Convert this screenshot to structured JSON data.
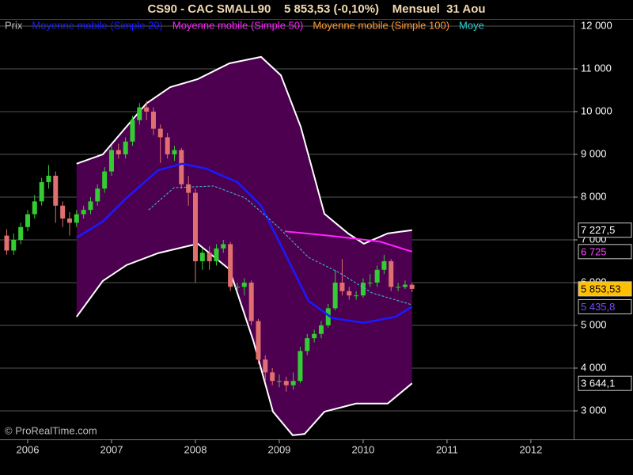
{
  "chart_data": {
    "type": "candlestick",
    "title": "CS90 - CAC SMALL90    5 853,53 (-0,10%)    Mensuel  31 Aou",
    "watermark": "© ProRealTime.com",
    "xlim": [
      2005.67,
      2012.51
    ],
    "xticks": [
      2006,
      2007,
      2008,
      2009,
      2010,
      2011,
      2012
    ],
    "ylim": [
      2333,
      12148
    ],
    "yticks": [
      {
        "value": 3000,
        "label": "3 000"
      },
      {
        "value": 4000,
        "label": "4 000"
      },
      {
        "value": 5000,
        "label": "5 000"
      },
      {
        "value": 6000,
        "label": "6 000"
      },
      {
        "value": 7000,
        "label": "7 000"
      },
      {
        "value": 8000,
        "label": "8 000"
      },
      {
        "value": 9000,
        "label": "9 000"
      },
      {
        "value": 10000,
        "label": "10 000"
      },
      {
        "value": 11000,
        "label": "11 000"
      },
      {
        "value": 12000,
        "label": "12 000"
      }
    ],
    "grid": true,
    "candles": {
      "name": "Prix",
      "color": "#bbbbbb",
      "up_color": "#33cc33",
      "down_color": "#e07070",
      "end_label": "5 853,53",
      "end_label_color": "#000000",
      "end_label_bg": "#ffc000",
      "x": [
        2005.75,
        2005.833,
        2005.917,
        2006.0,
        2006.083,
        2006.167,
        2006.25,
        2006.333,
        2006.417,
        2006.5,
        2006.583,
        2006.667,
        2006.75,
        2006.833,
        2006.917,
        2007.0,
        2007.083,
        2007.167,
        2007.25,
        2007.333,
        2007.417,
        2007.5,
        2007.583,
        2007.667,
        2007.75,
        2007.833,
        2007.917,
        2008.0,
        2008.083,
        2008.167,
        2008.25,
        2008.333,
        2008.417,
        2008.5,
        2008.583,
        2008.667,
        2008.75,
        2008.833,
        2008.917,
        2009.0,
        2009.083,
        2009.167,
        2009.25,
        2009.333,
        2009.417,
        2009.5,
        2009.583,
        2009.667,
        2009.75,
        2009.833,
        2009.917,
        2010.0,
        2010.083,
        2010.167,
        2010.25,
        2010.333,
        2010.417,
        2010.5,
        2010.583
      ],
      "open": [
        7100,
        6750,
        7000,
        7300,
        7600,
        7900,
        8350,
        8500,
        7800,
        7500,
        7400,
        7600,
        7700,
        7900,
        8200,
        8600,
        9100,
        9000,
        9300,
        9800,
        10100,
        10000,
        9600,
        9400,
        9000,
        9100,
        8300,
        8100,
        6500,
        6700,
        6500,
        6800,
        6900,
        5900,
        5900,
        6000,
        5100,
        4200,
        3900,
        3700,
        3700,
        3600,
        3700,
        4400,
        4700,
        4800,
        5000,
        5400,
        6000,
        5800,
        5700,
        5700,
        6000,
        6000,
        6300,
        6500,
        5900,
        5900,
        5950
      ],
      "high": [
        7250,
        7150,
        7400,
        7700,
        8050,
        8450,
        8750,
        8600,
        7900,
        7650,
        7700,
        7800,
        8000,
        8300,
        8700,
        9200,
        9250,
        9400,
        9900,
        10200,
        10250,
        10100,
        9700,
        9500,
        9200,
        9150,
        8500,
        8200,
        6800,
        6850,
        6900,
        7000,
        6950,
        6000,
        6100,
        6050,
        5150,
        4300,
        4000,
        3850,
        3800,
        3900,
        4500,
        4800,
        4900,
        5100,
        5500,
        6300,
        6550,
        5900,
        5800,
        6100,
        6200,
        6400,
        6650,
        6550,
        6000,
        6050,
        6000
      ],
      "low": [
        6650,
        6650,
        6900,
        7200,
        7500,
        7800,
        8200,
        7400,
        7300,
        7100,
        7300,
        7500,
        7600,
        7800,
        8100,
        8500,
        8900,
        8900,
        9200,
        9700,
        9800,
        9450,
        8800,
        8900,
        8850,
        8200,
        7800,
        6000,
        6300,
        6300,
        6400,
        6700,
        5800,
        5800,
        5700,
        5000,
        4100,
        3700,
        3600,
        3550,
        3450,
        3500,
        3650,
        4300,
        4600,
        4700,
        4950,
        5350,
        5700,
        5600,
        5600,
        5650,
        5900,
        5900,
        6200,
        5800,
        5800,
        5850,
        5780
      ],
      "close": [
        6750,
        7000,
        7300,
        7600,
        7900,
        8350,
        8500,
        7800,
        7500,
        7400,
        7600,
        7700,
        7900,
        8200,
        8600,
        9100,
        9000,
        9300,
        9800,
        10100,
        10000,
        9600,
        9400,
        9000,
        9100,
        8300,
        8100,
        6500,
        6700,
        6500,
        6800,
        6900,
        5900,
        5900,
        6000,
        5100,
        4200,
        3900,
        3700,
        3700,
        3600,
        3700,
        4400,
        4700,
        4800,
        5000,
        5400,
        6000,
        5800,
        5700,
        5700,
        6000,
        6000,
        6300,
        6500,
        5900,
        5900,
        5950,
        5853.53
      ]
    },
    "bands": {
      "fill": "#4d0050",
      "line_color": "#ffffff",
      "upper": {
        "x": [
          2006.583,
          2006.896,
          2007.179,
          2007.415,
          2007.698,
          2008.028,
          2008.406,
          2008.783,
          2009.019,
          2009.255,
          2009.538,
          2009.821,
          2010.009,
          2010.292,
          2010.583
        ],
        "values": [
          8780,
          9000,
          9650,
          10190,
          10570,
          10760,
          11130,
          11280,
          10850,
          9650,
          7610,
          7150,
          6910,
          7150,
          7227.5
        ],
        "end_label": "7 227,5",
        "end_label_color": "#ffffff",
        "end_label_bg": "#000000"
      },
      "lower": {
        "x": [
          2006.583,
          2006.896,
          2007.179,
          2007.557,
          2008.028,
          2008.406,
          2008.689,
          2008.925,
          2009.16,
          2009.302,
          2009.538,
          2009.915,
          2010.292,
          2010.583
        ],
        "values": [
          5200,
          6040,
          6410,
          6690,
          6910,
          6310,
          4650,
          2980,
          2430,
          2460,
          2980,
          3170,
          3170,
          3644.1
        ],
        "end_label": "3 644,1",
        "end_label_color": "#ffffff",
        "end_label_bg": "#000000"
      }
    },
    "series": [
      {
        "name": "Moyenne mobile (Simple 20)",
        "color": "#1a1aff",
        "width": 2.5,
        "dashed": false,
        "x": [
          2006.583,
          2006.896,
          2007.179,
          2007.557,
          2007.84,
          2008.123,
          2008.5,
          2008.783,
          2009.066,
          2009.349,
          2009.632,
          2010.009,
          2010.387,
          2010.583
        ],
        "values": [
          7050,
          7430,
          7980,
          8630,
          8780,
          8670,
          8350,
          7800,
          6690,
          5570,
          5170,
          5060,
          5200,
          5435.8
        ],
        "end_label": "5 435,8",
        "end_label_color": "#7a4dff",
        "end_label_bg": "#000000"
      },
      {
        "name": "Moyenne mobile (Simple 50)",
        "color": "#ff22ff",
        "width": 2,
        "dashed": false,
        "x": [
          2009.066,
          2009.632,
          2010.198,
          2010.583
        ],
        "values": [
          7200,
          7090,
          6960,
          6725
        ],
        "end_label": "6 725",
        "end_label_color": "#ff44ff",
        "end_label_bg": "#000000"
      },
      {
        "name": "Moyenne mobile (Simple 100)",
        "color": "#ff9933",
        "width": 2,
        "dashed": false,
        "x": [],
        "values": []
      },
      {
        "name": "Moye",
        "color": "#33cccc",
        "width": 1,
        "dashed": true,
        "x": [
          2007.443,
          2007.745,
          2008.217,
          2008.594,
          2008.972,
          2009.349,
          2009.726,
          2010.104,
          2010.583
        ],
        "values": [
          7700,
          8220,
          8260,
          7980,
          7330,
          6590,
          6220,
          5760,
          5480
        ]
      }
    ]
  }
}
